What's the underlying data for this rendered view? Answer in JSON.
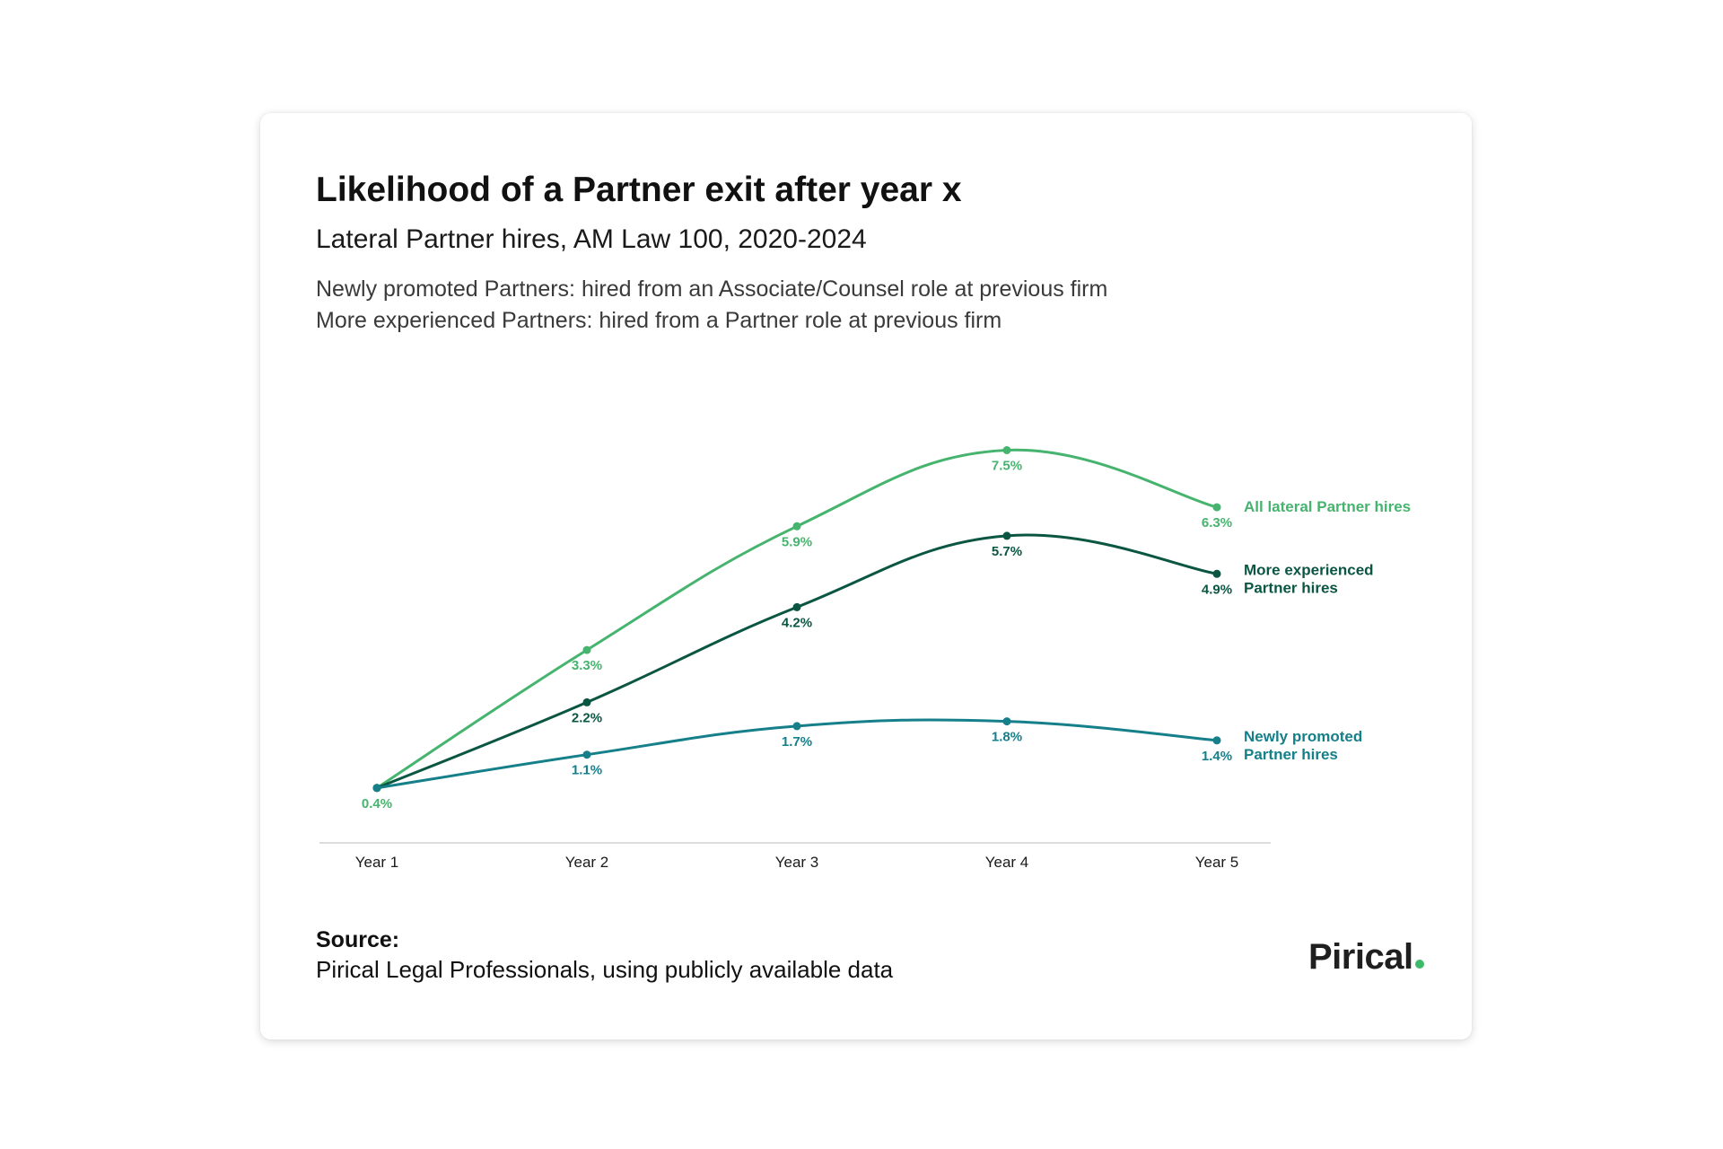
{
  "colors": {
    "all_lateral": "#46b46e",
    "more_experienced": "#0b5642",
    "newly_promoted": "#157f8a",
    "axis": "#d0d0d0"
  },
  "header": {
    "title": "Likelihood of a Partner exit after year x",
    "subtitle": "Lateral Partner hires, AM Law 100, 2020-2024",
    "notes": [
      "Newly promoted Partners: hired from an Associate/Counsel role at previous firm",
      "More experienced Partners: hired from a Partner role at previous firm"
    ]
  },
  "chart_data": {
    "type": "line",
    "title": "Likelihood of a Partner exit after year x",
    "subtitle": "Lateral Partner hires, AM Law 100, 2020-2024",
    "categories": [
      "Year 1",
      "Year 2",
      "Year 3",
      "Year 4",
      "Year 5"
    ],
    "ylim": [
      0,
      8
    ],
    "grid": false,
    "legend": "inline-right",
    "series": [
      {
        "name": "All lateral Partner hires",
        "label_lines": [
          "All lateral Partner hires"
        ],
        "values": [
          0.4,
          3.3,
          5.9,
          7.5,
          6.3
        ],
        "labels": [
          "0.4%",
          "3.3%",
          "5.9%",
          "7.5%",
          "6.3%"
        ],
        "color": "#46b46e"
      },
      {
        "name": "More experienced Partner hires",
        "label_lines": [
          "More experienced",
          "Partner hires"
        ],
        "values": [
          0.4,
          2.2,
          4.2,
          5.7,
          4.9
        ],
        "labels": [
          "",
          "2.2%",
          "4.2%",
          "5.7%",
          "4.9%"
        ],
        "color": "#0b5642"
      },
      {
        "name": "Newly promoted Partner hires",
        "label_lines": [
          "Newly promoted",
          "Partner hires"
        ],
        "values": [
          0.4,
          1.1,
          1.7,
          1.8,
          1.4
        ],
        "labels": [
          "",
          "1.1%",
          "1.7%",
          "1.8%",
          "1.4%"
        ],
        "color": "#157f8a"
      }
    ]
  },
  "source": {
    "label": "Source:",
    "text": "Pirical Legal Professionals, using publicly available data"
  },
  "logo": {
    "text": "Pirical"
  }
}
